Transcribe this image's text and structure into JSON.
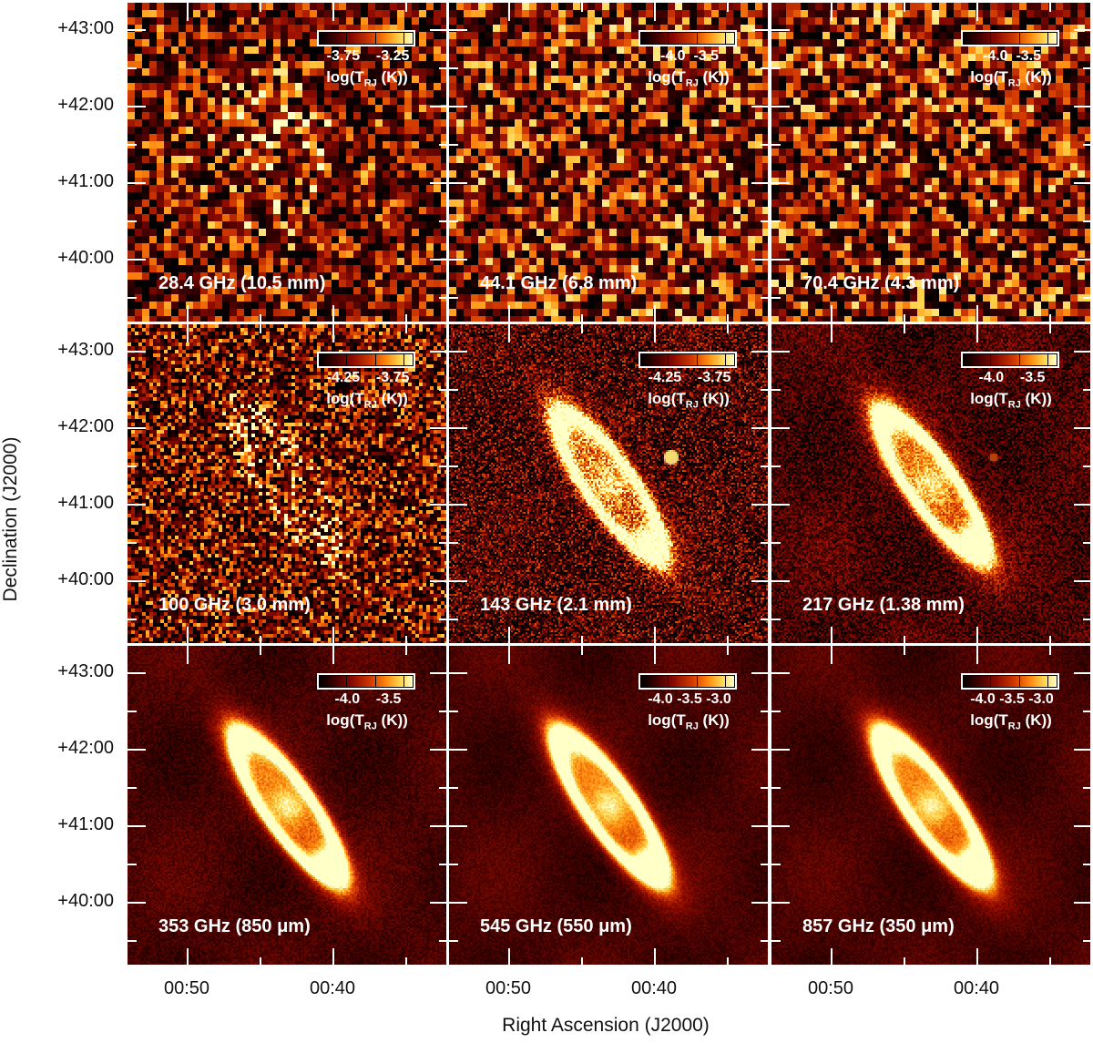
{
  "figure": {
    "y_axis_title": "Declination (J2000)",
    "x_axis_title": "Right Ascension (J2000)",
    "dec_ticks": [
      "+43:00",
      "+42:00",
      "+41:00",
      "+40:00"
    ],
    "ra_ticks": [
      "00:50",
      "00:40"
    ],
    "colorbar_label_prefix": "log(T",
    "colorbar_label_sub": "RJ",
    "colorbar_label_suffix": " (K))"
  },
  "panels": [
    {
      "freq": "28.4 GHz (10.5 mm)",
      "cbar_ticks": "-3.75    -3.25",
      "kind": "noise_blob",
      "noise": 0.9
    },
    {
      "freq": "44.1 GHz (6.8 mm)",
      "cbar_ticks": "-4.0  -3.5",
      "kind": "noise",
      "noise": 1.0
    },
    {
      "freq": "70.4 GHz (4.3 mm)",
      "cbar_ticks": "-4.0  -3.5",
      "kind": "noise",
      "noise": 1.0
    },
    {
      "freq": "100 GHz (3.0 mm)",
      "cbar_ticks": "-4.25    -3.75",
      "kind": "fine_noise_galaxy",
      "noise": 0.8
    },
    {
      "freq": "143 GHz (2.1 mm)",
      "cbar_ticks": "-4.25    -3.75",
      "kind": "galaxy",
      "noise": 0.6
    },
    {
      "freq": "217 GHz (1.38 mm)",
      "cbar_ticks": "-4.0    -3.5",
      "kind": "galaxy",
      "noise": 0.35
    },
    {
      "freq": "353 GHz (850 μm)",
      "cbar_ticks": "-4.0    -3.5",
      "kind": "galaxy",
      "noise": 0.15
    },
    {
      "freq": "545 GHz (550 μm)",
      "cbar_ticks": "-4.0 -3.5 -3.0",
      "kind": "galaxy",
      "noise": 0.12
    },
    {
      "freq": "857 GHz (350 μm)",
      "cbar_ticks": "-4.0 -3.5 -3.0",
      "kind": "galaxy",
      "noise": 0.12
    }
  ]
}
